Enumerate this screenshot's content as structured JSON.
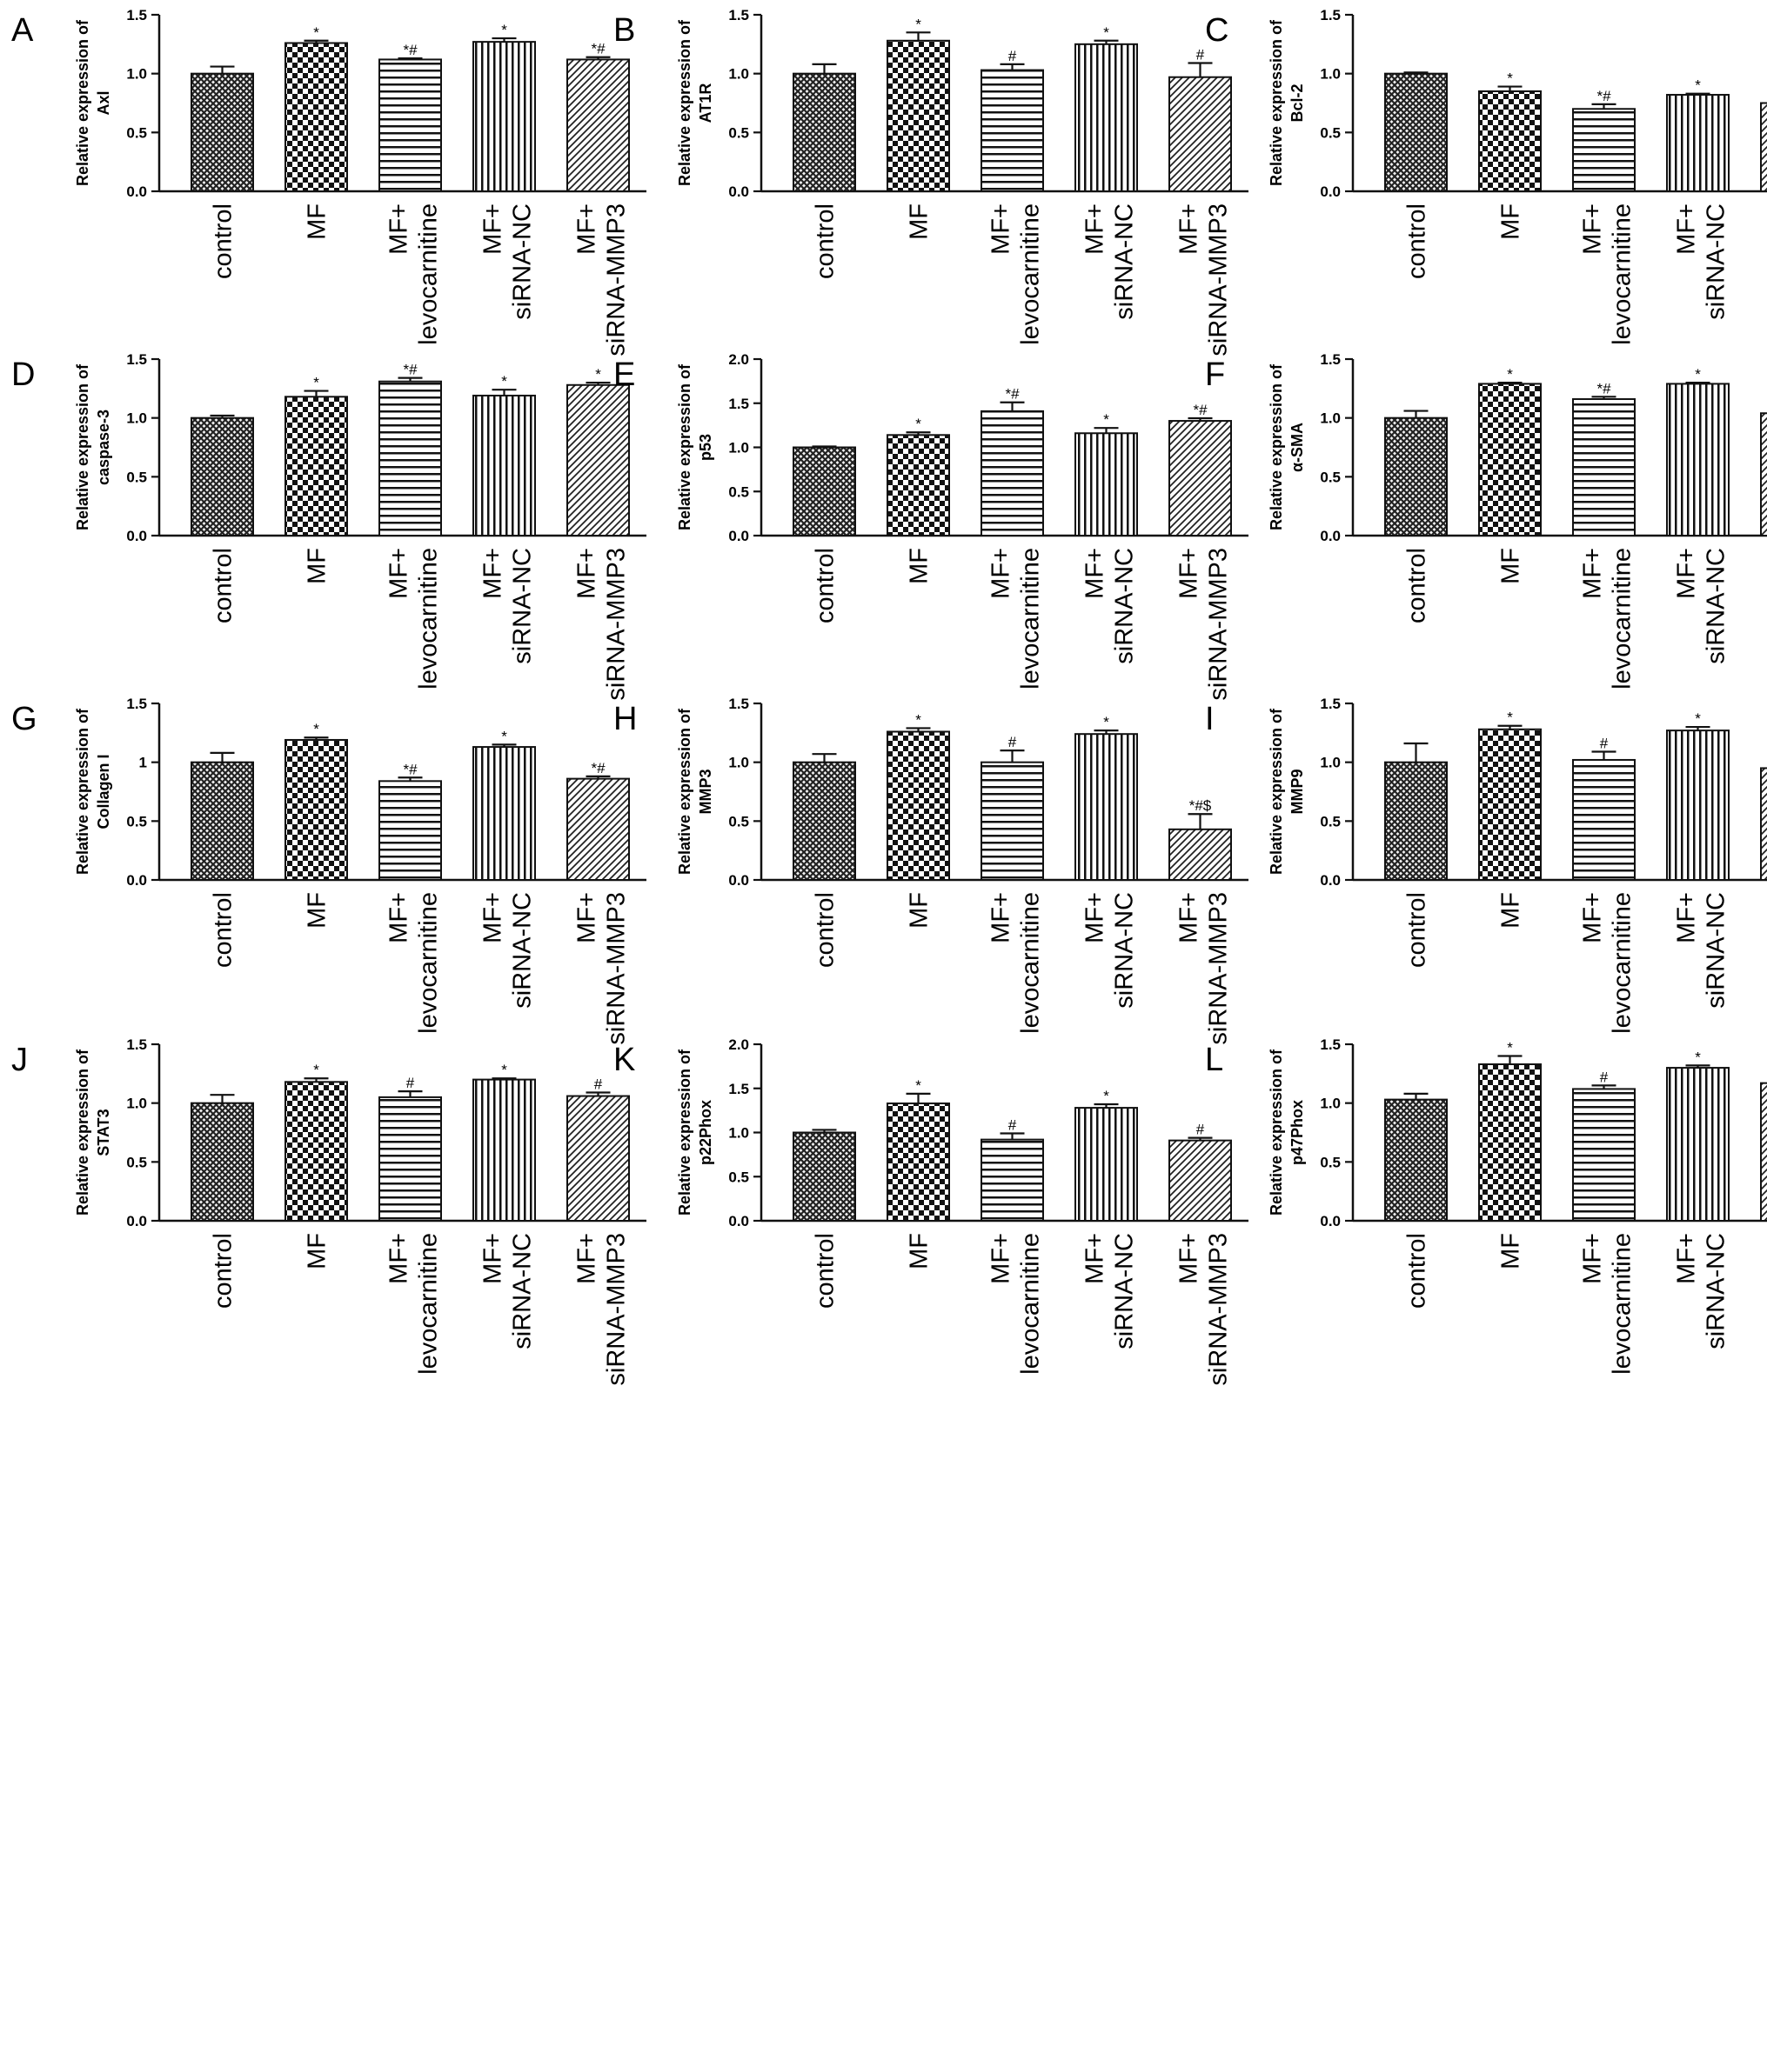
{
  "categories": [
    "control",
    "MF",
    "MF+ levocarnitine",
    "MF+ siRNA-NC",
    "MF+ siRNA-MMP3"
  ],
  "ylabel_prefix": "Relative expression of",
  "colors": {
    "axis": "#111111",
    "bar_stroke": "#111111",
    "pattern": "#222222",
    "background": "#ffffff"
  },
  "chart_data": [
    {
      "type": "bar",
      "panel": "A",
      "ylabel": "Axl",
      "ylim": [
        0,
        1.5
      ],
      "ticks": [
        "0.0",
        "0.5",
        "1.0",
        "1.5"
      ],
      "values": [
        1.0,
        1.26,
        1.12,
        1.27,
        1.12
      ],
      "errors": [
        0.06,
        0.02,
        0.01,
        0.03,
        0.02
      ],
      "marks": [
        "",
        "*",
        "*#",
        "*",
        "*#"
      ]
    },
    {
      "type": "bar",
      "panel": "B",
      "ylabel": "AT1R",
      "ylim": [
        0,
        1.5
      ],
      "ticks": [
        "0.0",
        "0.5",
        "1.0",
        "1.5"
      ],
      "values": [
        1.0,
        1.28,
        1.03,
        1.25,
        0.97
      ],
      "errors": [
        0.08,
        0.07,
        0.05,
        0.03,
        0.12
      ],
      "marks": [
        "",
        "*",
        "#",
        "*",
        "#"
      ]
    },
    {
      "type": "bar",
      "panel": "C",
      "ylabel": "Bcl-2",
      "ylim": [
        0,
        1.5
      ],
      "ticks": [
        "0.0",
        "0.5",
        "1.0",
        "1.5"
      ],
      "values": [
        1.0,
        0.85,
        0.7,
        0.82,
        0.75
      ],
      "errors": [
        0.01,
        0.04,
        0.04,
        0.01,
        0.02
      ],
      "marks": [
        "",
        "*",
        "*#",
        "*",
        "*#"
      ]
    },
    {
      "type": "bar",
      "panel": "D",
      "ylabel": "caspase-3",
      "ylim": [
        0,
        1.5
      ],
      "ticks": [
        "0.0",
        "0.5",
        "1.0",
        "1.5"
      ],
      "values": [
        1.0,
        1.18,
        1.31,
        1.19,
        1.28
      ],
      "errors": [
        0.02,
        0.05,
        0.03,
        0.05,
        0.02
      ],
      "marks": [
        "",
        "*",
        "*#",
        "*",
        "*"
      ]
    },
    {
      "type": "bar",
      "panel": "E",
      "ylabel": "p53",
      "ylim": [
        0,
        2.0
      ],
      "ticks": [
        "0.0",
        "0.5",
        "1.0",
        "1.5",
        "2.0"
      ],
      "values": [
        1.0,
        1.14,
        1.41,
        1.16,
        1.3
      ],
      "errors": [
        0.01,
        0.03,
        0.1,
        0.06,
        0.03
      ],
      "marks": [
        "",
        "*",
        "*#",
        "*",
        "*#"
      ]
    },
    {
      "type": "bar",
      "panel": "F",
      "ylabel": "α-SMA",
      "ylim": [
        0,
        1.5
      ],
      "ticks": [
        "0.0",
        "0.5",
        "1.0",
        "1.5"
      ],
      "values": [
        1.0,
        1.29,
        1.16,
        1.29,
        1.04
      ],
      "errors": [
        0.06,
        0.01,
        0.02,
        0.01,
        0.05
      ],
      "marks": [
        "",
        "*",
        "*#",
        "*",
        "#"
      ]
    },
    {
      "type": "bar",
      "panel": "G",
      "ylabel": "Collagen I",
      "ylim": [
        0,
        1.5
      ],
      "ticks": [
        "0.0",
        "0.5",
        "1",
        "1.5"
      ],
      "values": [
        1.0,
        1.19,
        0.84,
        1.13,
        0.86
      ],
      "errors": [
        0.08,
        0.02,
        0.03,
        0.02,
        0.02
      ],
      "marks": [
        "",
        "*",
        "*#",
        "*",
        "*#"
      ]
    },
    {
      "type": "bar",
      "panel": "H",
      "ylabel": "MMP3",
      "ylim": [
        0,
        1.5
      ],
      "ticks": [
        "0.0",
        "0.5",
        "1.0",
        "1.5"
      ],
      "values": [
        1.0,
        1.26,
        1.0,
        1.24,
        0.43
      ],
      "errors": [
        0.07,
        0.03,
        0.1,
        0.03,
        0.13
      ],
      "marks": [
        "",
        "*",
        "#",
        "*",
        "*#$"
      ]
    },
    {
      "type": "bar",
      "panel": "I",
      "ylabel": "MMP9",
      "ylim": [
        0,
        1.5
      ],
      "ticks": [
        "0.0",
        "0.5",
        "1.0",
        "1.5"
      ],
      "values": [
        1.0,
        1.28,
        1.02,
        1.27,
        0.95
      ],
      "errors": [
        0.16,
        0.03,
        0.07,
        0.03,
        0.1
      ],
      "marks": [
        "",
        "*",
        "#",
        "*",
        "#"
      ]
    },
    {
      "type": "bar",
      "panel": "J",
      "ylabel": "STAT3",
      "ylim": [
        0,
        1.5
      ],
      "ticks": [
        "0.0",
        "0.5",
        "1.0",
        "1.5"
      ],
      "values": [
        1.0,
        1.18,
        1.05,
        1.2,
        1.06
      ],
      "errors": [
        0.07,
        0.03,
        0.05,
        0.01,
        0.03
      ],
      "marks": [
        "",
        "*",
        "#",
        "*",
        "#"
      ]
    },
    {
      "type": "bar",
      "panel": "K",
      "ylabel": "p22Phox",
      "ylim": [
        0,
        2.0
      ],
      "ticks": [
        "0.0",
        "0.5",
        "1.0",
        "1.5",
        "2.0"
      ],
      "values": [
        1.0,
        1.33,
        0.92,
        1.28,
        0.91
      ],
      "errors": [
        0.03,
        0.11,
        0.07,
        0.04,
        0.03
      ],
      "marks": [
        "",
        "*",
        "#",
        "*",
        "#"
      ]
    },
    {
      "type": "bar",
      "panel": "L",
      "ylabel": "p47Phox",
      "ylim": [
        0,
        1.5
      ],
      "ticks": [
        "0.0",
        "0.5",
        "1.0",
        "1.5"
      ],
      "values": [
        1.03,
        1.33,
        1.12,
        1.3,
        1.17
      ],
      "errors": [
        0.05,
        0.07,
        0.03,
        0.02,
        0.05
      ],
      "marks": [
        "",
        "*",
        "#",
        "*",
        "*#"
      ]
    }
  ]
}
